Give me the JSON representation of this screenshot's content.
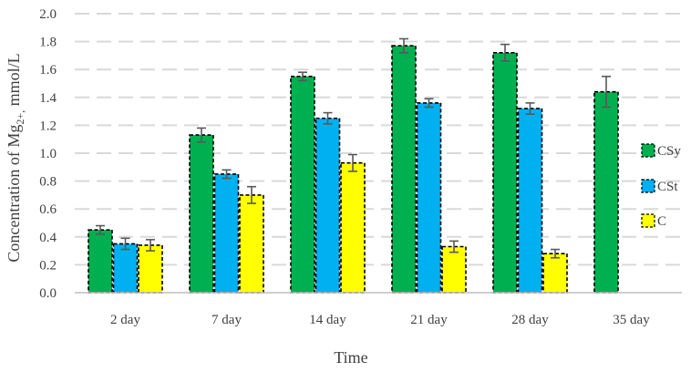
{
  "chart_data": {
    "type": "bar",
    "xlabel": "Time",
    "ylabel": {
      "prefix": "Concentration of Mg",
      "subscript": "2+,",
      "suffix": " mmol/L"
    },
    "ylim": [
      0,
      2.0
    ],
    "yticks": [
      "0.0",
      "0.2",
      "0.4",
      "0.6",
      "0.8",
      "1.0",
      "1.2",
      "1.4",
      "1.6",
      "1.8",
      "2.0"
    ],
    "grid": true,
    "legend_position": "right",
    "categories": [
      "2 day",
      "7 day",
      "14 day",
      "21 day",
      "28 day",
      "35 day"
    ],
    "series": [
      {
        "name": "CSy",
        "color": "#00b050",
        "values": [
          0.45,
          1.13,
          1.55,
          1.77,
          1.72,
          1.44
        ],
        "errors": [
          0.03,
          0.05,
          0.03,
          0.05,
          0.06,
          0.11
        ]
      },
      {
        "name": "CSt",
        "color": "#00b0f0",
        "values": [
          0.35,
          0.85,
          1.25,
          1.36,
          1.32,
          null
        ],
        "errors": [
          0.04,
          0.03,
          0.04,
          0.03,
          0.04,
          null
        ]
      },
      {
        "name": "C",
        "color": "#ffff00",
        "values": [
          0.34,
          0.7,
          0.93,
          0.33,
          0.28,
          null
        ],
        "errors": [
          0.04,
          0.06,
          0.06,
          0.04,
          0.03,
          null
        ]
      }
    ]
  }
}
